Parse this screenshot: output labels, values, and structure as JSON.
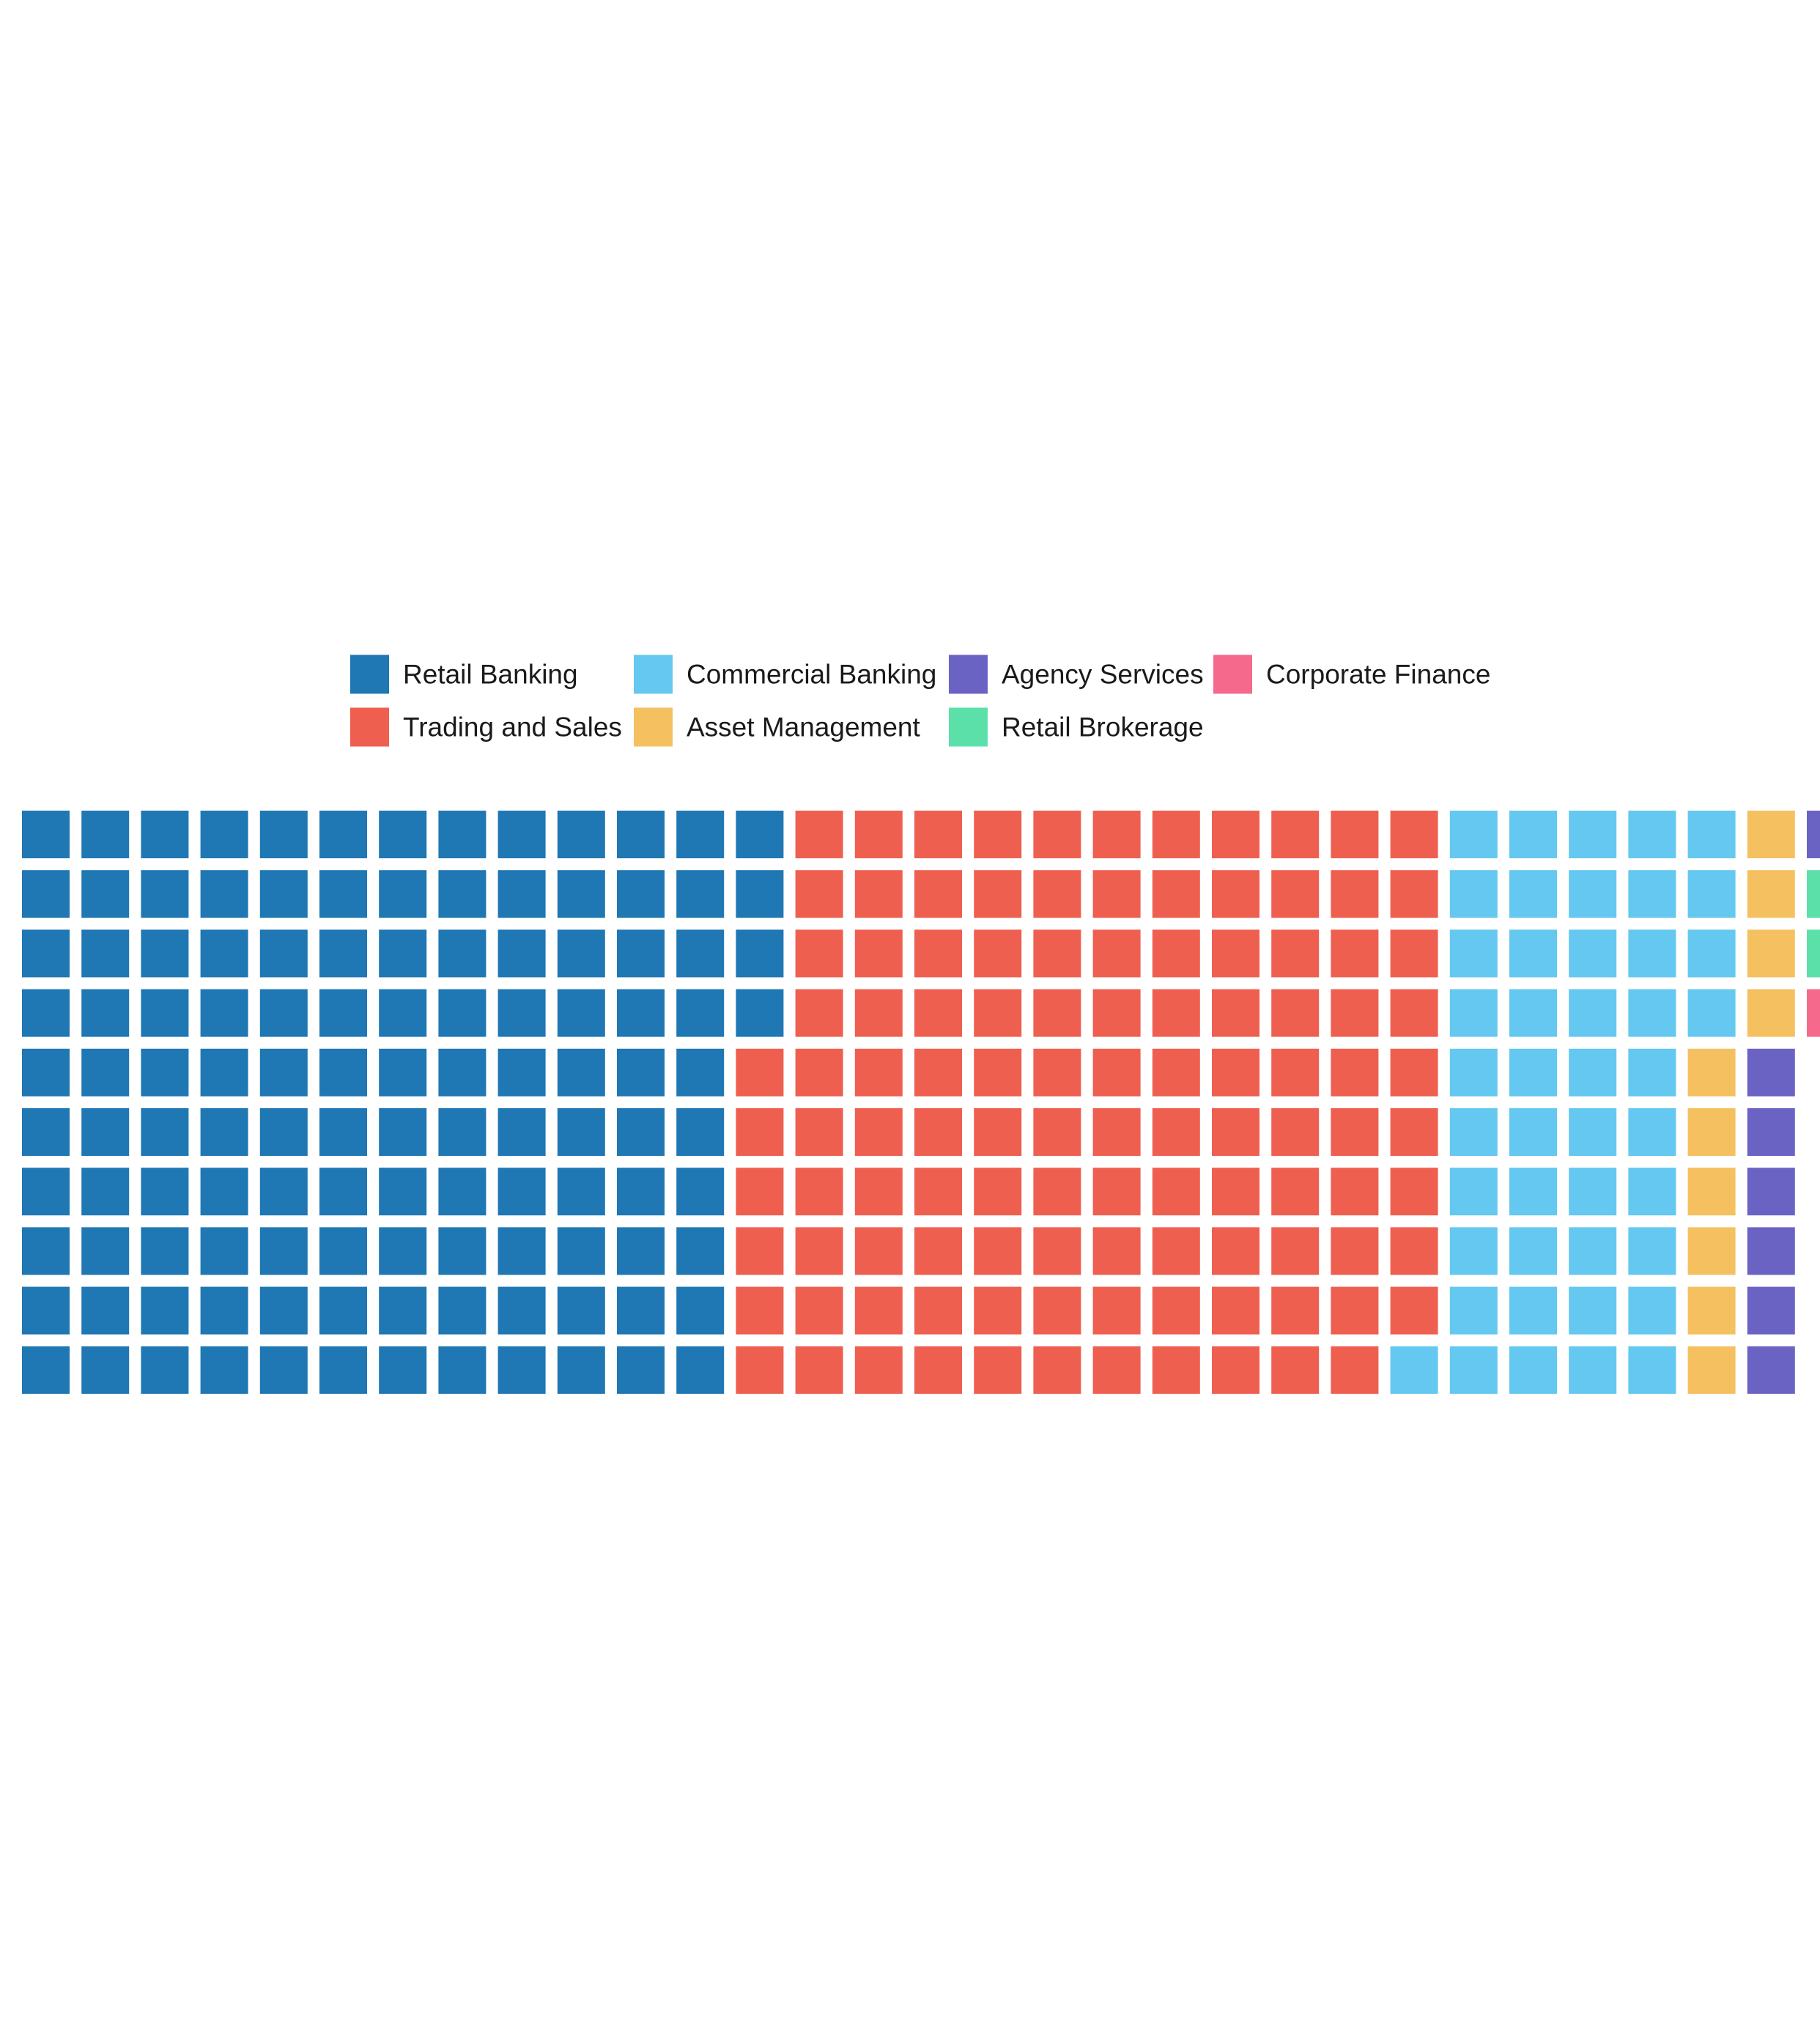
{
  "chart_data": {
    "type": "waffle",
    "title": "",
    "xlabel": "",
    "ylabel": "",
    "grid": false,
    "legend_placement": "top",
    "rows": 10,
    "columns": 31,
    "fill_order": "column-major, top-to-bottom then left-to-right",
    "series": [
      {
        "name": "Retail Banking",
        "value": 124,
        "color": "#1f77b4"
      },
      {
        "name": "Trading and Sales",
        "value": 115,
        "color": "#ef5f50"
      },
      {
        "name": "Commercial Banking",
        "value": 45,
        "color": "#64c8f0"
      },
      {
        "name": "Asset Management",
        "value": 10,
        "color": "#f5c060"
      },
      {
        "name": "Agency Services",
        "value": 7,
        "color": "#6b63c4"
      },
      {
        "name": "Retail Brokerage",
        "value": 2,
        "color": "#5ce0aa"
      },
      {
        "name": "Corporate Finance",
        "value": 1,
        "color": "#f5698c"
      }
    ]
  }
}
